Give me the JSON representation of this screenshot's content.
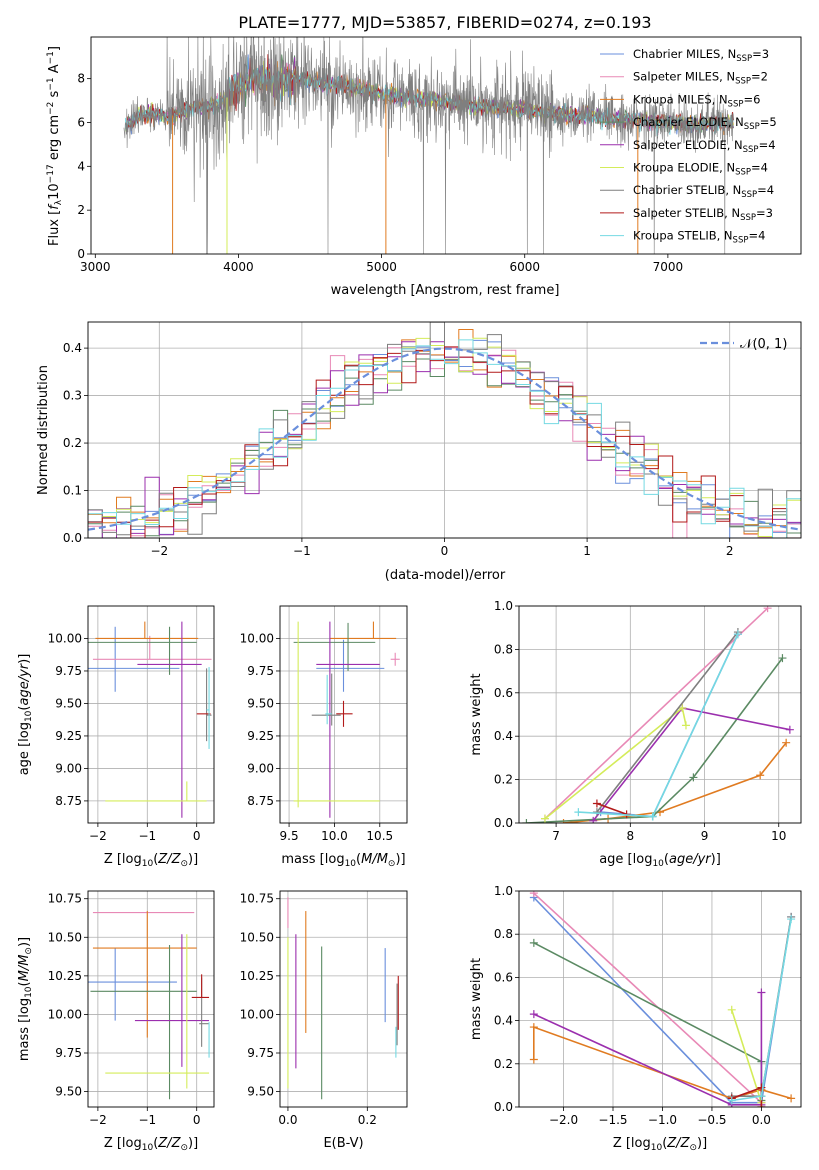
{
  "figure_title": "PLATE=1777, MJD=53857, FIBERID=0274, z=0.193",
  "colors": {
    "Chabrier MILES": "#6a8fdc",
    "Salpeter MILES": "#e889b6",
    "Kroupa MILES": "#e07b21",
    "Chabrier ELODIE": "#5b8a63",
    "Salpeter ELODIE": "#9b2fae",
    "Kroupa ELODIE": "#d4ec5a",
    "Chabrier STELIB": "#7f7f7f",
    "Salpeter STELIB": "#b21a1a",
    "Kroupa STELIB": "#74d9e2"
  },
  "chart_data": [
    {
      "id": "spectrum",
      "type": "line",
      "title": "PLATE=1777, MJD=53857, FIBERID=0274, z=0.193",
      "xlabel": "wavelength [Angstrom, rest frame]",
      "ylabel": "Flux [f_λ 10^-17 erg cm^-2 s^-1 A^-1]",
      "xlim": [
        2970,
        7930
      ],
      "ylim": [
        0,
        9.9
      ],
      "xticks": [
        3000,
        4000,
        5000,
        6000,
        7000
      ],
      "yticks": [
        0,
        2,
        4,
        6,
        8
      ],
      "grid": false,
      "legend_position": "right",
      "observed_x_range": [
        3200,
        7460
      ],
      "continuum": {
        "x": [
          3200,
          3300,
          3400,
          3500,
          3600,
          3700,
          3800,
          3900,
          4000,
          4100,
          4200,
          4300,
          4400,
          4600,
          4800,
          5000,
          5200,
          5400,
          5600,
          5800,
          6000,
          6200,
          6400,
          6600,
          6800,
          7000,
          7200,
          7460
        ],
        "y": [
          5.7,
          6.3,
          6.4,
          6.2,
          6.5,
          6.7,
          6.7,
          7.0,
          7.7,
          8.0,
          8.0,
          7.9,
          8.0,
          7.8,
          7.6,
          7.3,
          7.1,
          7.0,
          6.8,
          6.7,
          6.6,
          6.4,
          6.3,
          6.2,
          6.1,
          6.0,
          5.9,
          6.0
        ]
      },
      "series": [
        {
          "name": "Chabrier MILES, N_SSP=3",
          "label_main": "Chabrier MILES, N",
          "label_sub": "SSP",
          "label_tail": "=3"
        },
        {
          "name": "Salpeter MILES, N_SSP=2",
          "label_main": "Salpeter MILES, N",
          "label_sub": "SSP",
          "label_tail": "=2"
        },
        {
          "name": "Kroupa MILES, N_SSP=6",
          "label_main": "Kroupa MILES, N",
          "label_sub": "SSP",
          "label_tail": "=6"
        },
        {
          "name": "Chabrier ELODIE, N_SSP=5",
          "label_main": "Chabrier ELODIE, N",
          "label_sub": "SSP",
          "label_tail": "=5"
        },
        {
          "name": "Salpeter ELODIE, N_SSP=4",
          "label_main": "Salpeter ELODIE, N",
          "label_sub": "SSP",
          "label_tail": "=4"
        },
        {
          "name": "Kroupa ELODIE, N_SSP=4",
          "label_main": "Kroupa ELODIE, N",
          "label_sub": "SSP",
          "label_tail": "=4"
        },
        {
          "name": "Chabrier STELIB, N_SSP=4",
          "label_main": "Chabrier STELIB, N",
          "label_sub": "SSP",
          "label_tail": "=4"
        },
        {
          "name": "Salpeter STELIB, N_SSP=3",
          "label_main": "Salpeter STELIB, N",
          "label_sub": "SSP",
          "label_tail": "=3"
        },
        {
          "name": "Kroupa STELIB, N_SSP=4",
          "label_main": "Kroupa STELIB, N",
          "label_sub": "SSP",
          "label_tail": "=4"
        }
      ]
    },
    {
      "id": "residuals",
      "type": "histogram",
      "xlabel": "(data-model)/error",
      "ylabel": "Normed distribution",
      "xlim": [
        -2.5,
        2.5
      ],
      "ylim": [
        0,
        0.455
      ],
      "xticks": [
        -2,
        -1,
        0,
        1,
        2
      ],
      "yticks": [
        0.0,
        0.1,
        0.2,
        0.3,
        0.4
      ],
      "grid": true,
      "reference_curve": {
        "name": "N(0,1)",
        "label": "𝒩(0, 1)",
        "style": "dashed",
        "color": "#6a8fdc"
      },
      "bin_width": 0.1
    },
    {
      "id": "age_vs_Z",
      "type": "errorbar",
      "xlabel": "Z [log10(Z/Z⊙)]",
      "ylabel": "age [log10(age/yr)]",
      "xlim": [
        -2.2,
        0.35
      ],
      "ylim": [
        8.58,
        10.25
      ],
      "xticks": [
        -2,
        -1,
        0
      ],
      "yticks": [
        8.75,
        9.0,
        9.25,
        9.5,
        9.75,
        10.0
      ],
      "grid": true,
      "points": [
        {
          "model": "Chabrier MILES",
          "x": -1.65,
          "y": 9.77,
          "xerr": [
            0.55,
            1.3
          ],
          "yerr": [
            0.18,
            0.32
          ]
        },
        {
          "model": "Salpeter MILES",
          "x": -0.95,
          "y": 9.84,
          "xerr": [
            1.15,
            1.25
          ],
          "yerr": [
            0.0,
            0.18
          ]
        },
        {
          "model": "Kroupa MILES",
          "x": -1.05,
          "y": 10.0,
          "xerr": [
            1.0,
            1.08
          ],
          "yerr": [
            0.0,
            0.13
          ]
        },
        {
          "model": "Chabrier ELODIE",
          "x": -0.55,
          "y": 9.97,
          "xerr": [
            1.7,
            0.55
          ],
          "yerr": [
            0.25,
            0.12
          ]
        },
        {
          "model": "Salpeter ELODIE",
          "x": -0.3,
          "y": 9.8,
          "xerr": [
            0.9,
            0.4
          ],
          "yerr": [
            1.18,
            0.33
          ]
        },
        {
          "model": "Kroupa ELODIE",
          "x": -0.2,
          "y": 8.75,
          "xerr": [
            1.65,
            0.4
          ],
          "yerr": [
            0.0,
            0.15
          ]
        },
        {
          "model": "Chabrier STELIB",
          "x": 0.2,
          "y": 9.41,
          "xerr": [
            0.0,
            0.1
          ],
          "yerr": [
            0.2,
            0.36
          ]
        },
        {
          "model": "Salpeter STELIB",
          "x": 0.28,
          "y": 9.42,
          "xerr": [
            0.28,
            0.0
          ],
          "yerr": [
            0.0,
            0.0
          ]
        },
        {
          "model": "Kroupa STELIB",
          "x": 0.25,
          "y": 9.45,
          "xerr": [
            0.05,
            0.0
          ],
          "yerr": [
            0.3,
            0.33
          ]
        }
      ]
    },
    {
      "id": "age_vs_mass",
      "type": "errorbar",
      "xlabel": "mass [log10(M/M⊙)]",
      "ylabel": "",
      "xlim": [
        9.4,
        10.8
      ],
      "ylim": [
        8.58,
        10.25
      ],
      "xticks": [
        9.5,
        10.0,
        10.5
      ],
      "yticks": [
        8.75,
        9.0,
        9.25,
        9.5,
        9.75,
        10.0
      ],
      "grid": true,
      "points": [
        {
          "model": "Chabrier MILES",
          "x": 10.1,
          "y": 9.77,
          "xerr": [
            0.3,
            0.45
          ],
          "yerr": [
            0.18,
            0.22
          ]
        },
        {
          "model": "Salpeter MILES",
          "x": 10.67,
          "y": 9.84,
          "xerr": [
            0.05,
            0.05
          ],
          "yerr": [
            0.05,
            0.05
          ]
        },
        {
          "model": "Kroupa MILES",
          "x": 10.43,
          "y": 10.0,
          "xerr": [
            0.48,
            0.25
          ],
          "yerr": [
            0.0,
            0.13
          ]
        },
        {
          "model": "Chabrier ELODIE",
          "x": 10.15,
          "y": 9.97,
          "xerr": [
            0.6,
            0.3
          ],
          "yerr": [
            0.22,
            0.15
          ]
        },
        {
          "model": "Salpeter ELODIE",
          "x": 9.95,
          "y": 9.8,
          "xerr": [
            0.15,
            0.55
          ],
          "yerr": [
            1.18,
            0.33
          ]
        },
        {
          "model": "Kroupa ELODIE",
          "x": 9.6,
          "y": 8.75,
          "xerr": [
            0.05,
            0.9
          ],
          "yerr": [
            0.05,
            1.38
          ]
        },
        {
          "model": "Chabrier STELIB",
          "x": 9.97,
          "y": 9.41,
          "xerr": [
            0.22,
            0.1
          ],
          "yerr": [
            0.08,
            0.32
          ]
        },
        {
          "model": "Salpeter STELIB",
          "x": 10.1,
          "y": 9.42,
          "xerr": [
            0.08,
            0.1
          ],
          "yerr": [
            0.1,
            0.1
          ]
        },
        {
          "model": "Kroupa STELIB",
          "x": 9.92,
          "y": 9.42,
          "xerr": [
            0.02,
            0.05
          ],
          "yerr": [
            0.08,
            0.3
          ]
        }
      ]
    },
    {
      "id": "weight_vs_age",
      "type": "line",
      "xlabel": "age [log10(age/yr)]",
      "ylabel": "mass weight",
      "xlim": [
        6.5,
        10.3
      ],
      "ylim": [
        0.0,
        1.0
      ],
      "xticks": [
        7,
        8,
        9,
        10
      ],
      "yticks": [
        0.0,
        0.2,
        0.4,
        0.6,
        0.8,
        1.0
      ],
      "grid": true,
      "series": [
        {
          "model": "Chabrier MILES",
          "x": [
            7.6,
            8.3,
            9.45
          ],
          "y": [
            0.05,
            0.03,
            0.87
          ]
        },
        {
          "model": "Salpeter MILES",
          "x": [
            6.85,
            9.85
          ],
          "y": [
            0.02,
            0.99
          ]
        },
        {
          "model": "Kroupa MILES",
          "x": [
            7.1,
            7.7,
            8.4,
            9.75,
            10.1
          ],
          "y": [
            0.0,
            0.02,
            0.05,
            0.22,
            0.37
          ]
        },
        {
          "model": "Chabrier ELODIE",
          "x": [
            6.6,
            8.3,
            8.85,
            10.05
          ],
          "y": [
            0.0,
            0.03,
            0.21,
            0.76
          ]
        },
        {
          "model": "Salpeter ELODIE",
          "x": [
            7.5,
            8.7,
            10.15
          ],
          "y": [
            0.01,
            0.53,
            0.43
          ]
        },
        {
          "model": "Kroupa ELODIE",
          "x": [
            6.85,
            8.7,
            8.75
          ],
          "y": [
            0.02,
            0.53,
            0.45
          ]
        },
        {
          "model": "Chabrier STELIB",
          "x": [
            7.55,
            9.45
          ],
          "y": [
            0.05,
            0.88
          ]
        },
        {
          "model": "Salpeter STELIB",
          "x": [
            7.55,
            7.95
          ],
          "y": [
            0.09,
            0.04
          ]
        },
        {
          "model": "Kroupa STELIB",
          "x": [
            7.3,
            8.3,
            9.45
          ],
          "y": [
            0.05,
            0.03,
            0.87
          ]
        }
      ]
    },
    {
      "id": "mass_vs_Z",
      "type": "errorbar",
      "xlabel": "Z [log10(Z/Z⊙)]",
      "ylabel": "mass [log10(M/M⊙)]",
      "xlim": [
        -2.2,
        0.35
      ],
      "ylim": [
        9.4,
        10.8
      ],
      "xticks": [
        -2,
        -1,
        0
      ],
      "yticks": [
        9.5,
        9.75,
        10.0,
        10.25,
        10.5,
        10.75
      ],
      "grid": true,
      "points": [
        {
          "model": "Chabrier MILES",
          "x": -1.65,
          "y": 10.21,
          "xerr": [
            0.55,
            1.25
          ],
          "yerr": [
            0.25,
            0.22
          ]
        },
        {
          "model": "Salpeter MILES",
          "x": -1.05,
          "y": 10.66,
          "xerr": [
            1.05,
            1.0
          ],
          "yerr": [
            0.0,
            0.0
          ]
        },
        {
          "model": "Kroupa MILES",
          "x": -1.0,
          "y": 10.43,
          "xerr": [
            1.1,
            1.0
          ],
          "yerr": [
            0.58,
            0.24
          ]
        },
        {
          "model": "Chabrier ELODIE",
          "x": -0.55,
          "y": 10.15,
          "xerr": [
            1.6,
            0.55
          ],
          "yerr": [
            0.7,
            0.3
          ]
        },
        {
          "model": "Salpeter ELODIE",
          "x": -0.3,
          "y": 9.96,
          "xerr": [
            0.95,
            0.55
          ],
          "yerr": [
            0.3,
            0.56
          ]
        },
        {
          "model": "Kroupa ELODIE",
          "x": -0.2,
          "y": 9.62,
          "xerr": [
            1.65,
            0.45
          ],
          "yerr": [
            0.1,
            0.9
          ]
        },
        {
          "model": "Chabrier STELIB",
          "x": 0.1,
          "y": 9.94,
          "xerr": [
            0.05,
            0.15
          ],
          "yerr": [
            0.15,
            0.3
          ]
        },
        {
          "model": "Salpeter STELIB",
          "x": 0.1,
          "y": 10.11,
          "xerr": [
            0.2,
            0.15
          ],
          "yerr": [
            0.0,
            0.15
          ]
        },
        {
          "model": "Kroupa STELIB",
          "x": 0.25,
          "y": 9.8,
          "xerr": [
            0.0,
            0.0
          ],
          "yerr": [
            0.08,
            0.15
          ]
        }
      ]
    },
    {
      "id": "mass_vs_EBV",
      "type": "errorbar",
      "xlabel": "E(B-V)",
      "ylabel": "",
      "xlim": [
        -0.02,
        0.3
      ],
      "ylim": [
        9.4,
        10.8
      ],
      "xticks": [
        0.0,
        0.2
      ],
      "yticks": [
        9.5,
        9.75,
        10.0,
        10.25,
        10.5,
        10.75
      ],
      "grid": true,
      "points": [
        {
          "model": "Chabrier MILES",
          "x": 0.245,
          "y": 10.2,
          "xerr": [
            0.0,
            0.0
          ],
          "yerr": [
            0.25,
            0.23
          ]
        },
        {
          "model": "Salpeter MILES",
          "x": 0.0,
          "y": 10.66,
          "xerr": [
            0.0,
            0.0
          ],
          "yerr": [
            0.1,
            0.1
          ]
        },
        {
          "model": "Kroupa MILES",
          "x": 0.045,
          "y": 10.43,
          "xerr": [
            0.0,
            0.0
          ],
          "yerr": [
            0.55,
            0.24
          ]
        },
        {
          "model": "Chabrier ELODIE",
          "x": 0.085,
          "y": 10.0,
          "xerr": [
            0.0,
            0.0
          ],
          "yerr": [
            0.55,
            0.44
          ]
        },
        {
          "model": "Salpeter ELODIE",
          "x": 0.02,
          "y": 10.0,
          "xerr": [
            0.0,
            0.0
          ],
          "yerr": [
            0.35,
            0.52
          ]
        },
        {
          "model": "Kroupa ELODIE",
          "x": 0.0,
          "y": 10.0,
          "xerr": [
            0.0,
            0.0
          ],
          "yerr": [
            0.48,
            0.5
          ]
        },
        {
          "model": "Chabrier STELIB",
          "x": 0.275,
          "y": 10.0,
          "xerr": [
            0.0,
            0.0
          ],
          "yerr": [
            0.2,
            0.2
          ]
        },
        {
          "model": "Salpeter STELIB",
          "x": 0.278,
          "y": 10.1,
          "xerr": [
            0.0,
            0.0
          ],
          "yerr": [
            0.2,
            0.15
          ]
        },
        {
          "model": "Kroupa STELIB",
          "x": 0.272,
          "y": 9.82,
          "xerr": [
            0.0,
            0.0
          ],
          "yerr": [
            0.1,
            0.1
          ]
        }
      ]
    },
    {
      "id": "weight_vs_Z",
      "type": "line",
      "xlabel": "Z [log10(Z/Z⊙)]",
      "ylabel": "mass weight",
      "xlim": [
        -2.45,
        0.4
      ],
      "ylim": [
        0.0,
        1.0
      ],
      "xticks": [
        -2.0,
        -1.5,
        -1.0,
        -0.5,
        0.0
      ],
      "yticks": [
        0.0,
        0.2,
        0.4,
        0.6,
        0.8,
        1.0
      ],
      "grid": true,
      "series": [
        {
          "model": "Chabrier MILES",
          "x": [
            -2.3,
            -0.3,
            0.0,
            0.3
          ],
          "y": [
            0.97,
            0.02,
            0.02,
            0.88
          ]
        },
        {
          "model": "Salpeter MILES",
          "x": [
            -2.3,
            0.0
          ],
          "y": [
            0.99,
            0.02
          ]
        },
        {
          "model": "Kroupa MILES",
          "x": [
            -2.3,
            -2.3,
            -0.3,
            0.0,
            0.3
          ],
          "y": [
            0.22,
            0.37,
            0.04,
            0.08,
            0.04
          ]
        },
        {
          "model": "Chabrier ELODIE",
          "x": [
            -2.3,
            0.0,
            0.0
          ],
          "y": [
            0.76,
            0.21,
            0.03
          ]
        },
        {
          "model": "Salpeter ELODIE",
          "x": [
            -2.3,
            -0.3,
            0.0,
            0.0
          ],
          "y": [
            0.43,
            0.01,
            0.01,
            0.53
          ]
        },
        {
          "model": "Kroupa ELODIE",
          "x": [
            -0.3,
            0.0,
            0.0
          ],
          "y": [
            0.45,
            0.02,
            0.0
          ]
        },
        {
          "model": "Chabrier STELIB",
          "x": [
            -0.3,
            0.0,
            0.3
          ],
          "y": [
            0.05,
            0.05,
            0.88
          ]
        },
        {
          "model": "Salpeter STELIB",
          "x": [
            -0.3,
            0.0,
            0.0
          ],
          "y": [
            0.04,
            0.09,
            0.0
          ]
        },
        {
          "model": "Kroupa STELIB",
          "x": [
            -0.3,
            0.0,
            0.3
          ],
          "y": [
            0.03,
            0.05,
            0.87
          ]
        }
      ]
    }
  ]
}
